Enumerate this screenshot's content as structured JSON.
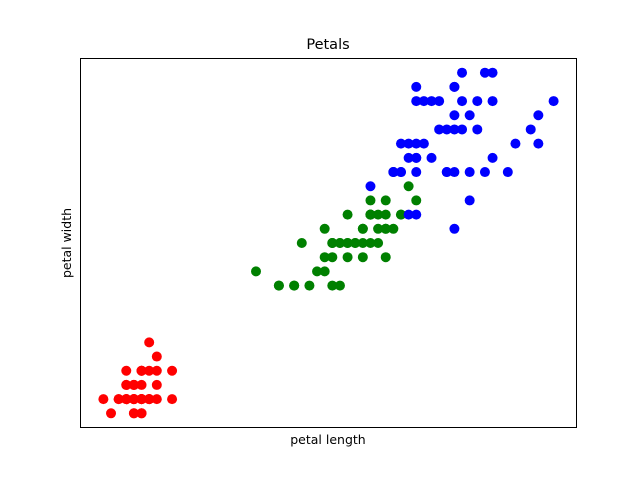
{
  "chart_data": {
    "type": "scatter",
    "title": "Petals",
    "xlabel": "petal length",
    "ylabel": "petal width",
    "xlim": [
      0.7,
      7.2
    ],
    "ylim": [
      0.0,
      2.6
    ],
    "grid": false,
    "ticks": false,
    "series": [
      {
        "color": "#ff0000",
        "points": [
          [
            1.4,
            0.2
          ],
          [
            1.4,
            0.2
          ],
          [
            1.3,
            0.2
          ],
          [
            1.5,
            0.2
          ],
          [
            1.4,
            0.2
          ],
          [
            1.7,
            0.4
          ],
          [
            1.4,
            0.3
          ],
          [
            1.5,
            0.2
          ],
          [
            1.4,
            0.2
          ],
          [
            1.5,
            0.1
          ],
          [
            1.5,
            0.2
          ],
          [
            1.6,
            0.2
          ],
          [
            1.4,
            0.1
          ],
          [
            1.1,
            0.1
          ],
          [
            1.2,
            0.2
          ],
          [
            1.5,
            0.4
          ],
          [
            1.3,
            0.4
          ],
          [
            1.4,
            0.3
          ],
          [
            1.7,
            0.3
          ],
          [
            1.5,
            0.3
          ],
          [
            1.7,
            0.2
          ],
          [
            1.5,
            0.4
          ],
          [
            1.0,
            0.2
          ],
          [
            1.7,
            0.5
          ],
          [
            1.9,
            0.2
          ],
          [
            1.6,
            0.2
          ],
          [
            1.6,
            0.4
          ],
          [
            1.5,
            0.2
          ],
          [
            1.4,
            0.2
          ],
          [
            1.6,
            0.2
          ],
          [
            1.6,
            0.2
          ],
          [
            1.5,
            0.4
          ],
          [
            1.5,
            0.1
          ],
          [
            1.4,
            0.2
          ],
          [
            1.5,
            0.2
          ],
          [
            1.2,
            0.2
          ],
          [
            1.3,
            0.2
          ],
          [
            1.4,
            0.1
          ],
          [
            1.3,
            0.2
          ],
          [
            1.5,
            0.2
          ],
          [
            1.3,
            0.3
          ],
          [
            1.3,
            0.3
          ],
          [
            1.3,
            0.2
          ],
          [
            1.6,
            0.6
          ],
          [
            1.9,
            0.4
          ],
          [
            1.4,
            0.3
          ],
          [
            1.6,
            0.2
          ],
          [
            1.4,
            0.2
          ],
          [
            1.5,
            0.2
          ],
          [
            1.4,
            0.2
          ]
        ]
      },
      {
        "color": "#008000",
        "points": [
          [
            4.7,
            1.4
          ],
          [
            4.5,
            1.5
          ],
          [
            4.9,
            1.5
          ],
          [
            4.0,
            1.3
          ],
          [
            4.6,
            1.5
          ],
          [
            4.5,
            1.3
          ],
          [
            4.7,
            1.6
          ],
          [
            3.3,
            1.0
          ],
          [
            4.6,
            1.3
          ],
          [
            3.9,
            1.4
          ],
          [
            3.5,
            1.0
          ],
          [
            4.2,
            1.5
          ],
          [
            4.0,
            1.0
          ],
          [
            4.7,
            1.4
          ],
          [
            3.6,
            1.3
          ],
          [
            4.4,
            1.4
          ],
          [
            4.5,
            1.5
          ],
          [
            4.1,
            1.0
          ],
          [
            4.5,
            1.5
          ],
          [
            3.9,
            1.1
          ],
          [
            4.8,
            1.8
          ],
          [
            4.0,
            1.3
          ],
          [
            4.9,
            1.5
          ],
          [
            4.7,
            1.2
          ],
          [
            4.3,
            1.3
          ],
          [
            4.4,
            1.4
          ],
          [
            4.8,
            1.4
          ],
          [
            5.0,
            1.7
          ],
          [
            4.5,
            1.5
          ],
          [
            3.5,
            1.0
          ],
          [
            3.8,
            1.1
          ],
          [
            3.7,
            1.0
          ],
          [
            3.9,
            1.2
          ],
          [
            5.1,
            1.6
          ],
          [
            4.5,
            1.5
          ],
          [
            4.5,
            1.6
          ],
          [
            4.7,
            1.5
          ],
          [
            4.4,
            1.3
          ],
          [
            4.1,
            1.3
          ],
          [
            4.0,
            1.3
          ],
          [
            4.4,
            1.2
          ],
          [
            4.6,
            1.4
          ],
          [
            4.0,
            1.2
          ],
          [
            3.3,
            1.0
          ],
          [
            4.2,
            1.3
          ],
          [
            4.2,
            1.2
          ],
          [
            4.2,
            1.3
          ],
          [
            4.3,
            1.3
          ],
          [
            3.0,
            1.1
          ],
          [
            4.1,
            1.3
          ]
        ]
      },
      {
        "color": "#0000ff",
        "points": [
          [
            6.0,
            2.5
          ],
          [
            5.1,
            1.9
          ],
          [
            5.9,
            2.1
          ],
          [
            5.6,
            1.8
          ],
          [
            5.8,
            2.2
          ],
          [
            6.6,
            2.1
          ],
          [
            4.5,
            1.7
          ],
          [
            6.3,
            1.8
          ],
          [
            5.8,
            1.8
          ],
          [
            6.1,
            2.5
          ],
          [
            5.1,
            2.0
          ],
          [
            5.3,
            1.9
          ],
          [
            5.5,
            2.1
          ],
          [
            5.0,
            2.0
          ],
          [
            5.1,
            2.4
          ],
          [
            5.3,
            2.3
          ],
          [
            5.5,
            1.8
          ],
          [
            6.7,
            2.2
          ],
          [
            6.9,
            2.3
          ],
          [
            5.0,
            1.5
          ],
          [
            5.7,
            2.3
          ],
          [
            4.9,
            2.0
          ],
          [
            6.7,
            2.0
          ],
          [
            4.9,
            1.8
          ],
          [
            5.7,
            2.1
          ],
          [
            6.0,
            1.8
          ],
          [
            4.8,
            1.8
          ],
          [
            4.9,
            1.8
          ],
          [
            5.6,
            2.1
          ],
          [
            5.8,
            1.6
          ],
          [
            6.1,
            1.9
          ],
          [
            6.4,
            2.0
          ],
          [
            5.6,
            2.2
          ],
          [
            5.1,
            1.5
          ],
          [
            5.6,
            1.4
          ],
          [
            6.1,
            2.3
          ],
          [
            5.6,
            2.4
          ],
          [
            5.5,
            1.8
          ],
          [
            4.8,
            1.8
          ],
          [
            5.4,
            2.1
          ],
          [
            5.6,
            2.4
          ],
          [
            5.1,
            2.3
          ],
          [
            5.1,
            1.9
          ],
          [
            5.9,
            2.3
          ],
          [
            5.7,
            2.5
          ],
          [
            5.2,
            2.3
          ],
          [
            5.0,
            1.9
          ],
          [
            5.2,
            2.0
          ],
          [
            5.4,
            2.3
          ],
          [
            5.1,
            1.8
          ]
        ]
      }
    ]
  }
}
